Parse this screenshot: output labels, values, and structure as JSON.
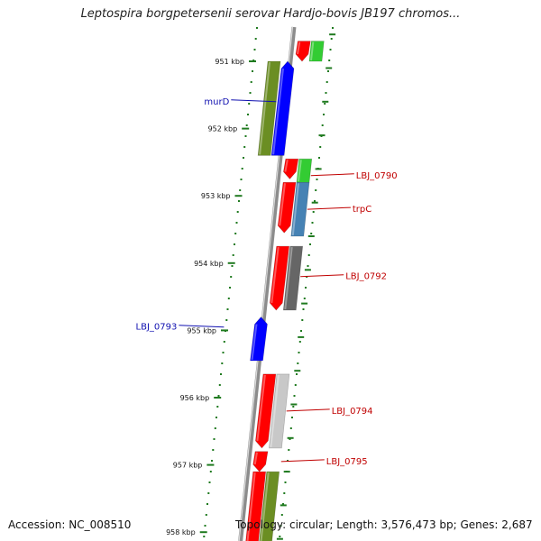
{
  "title": "Leptospira borgpetersenii serovar Hardjo-bovis JB197 chromos...",
  "accession": "Accession: NC_008510",
  "summary": "Topology: circular; Length: 3,576,473 bp; Genes: 2,687",
  "colors": {
    "backbone": "#8c8c8c",
    "tick": "#1f7a1f",
    "label_forward": "#1010b0",
    "label_reverse": "#c00000",
    "red": "#ff0000",
    "blue": "#0000ff",
    "olive": "#6b8e23",
    "green": "#33cc33",
    "steel": "#4682b4",
    "darkgray": "#666666",
    "lightgray": "#c8c8c8"
  },
  "ticks": [
    {
      "kbp": 951,
      "label": "951 kbp"
    },
    {
      "kbp": 952,
      "label": "952 kbp"
    },
    {
      "kbp": 953,
      "label": "953 kbp"
    },
    {
      "kbp": 954,
      "label": "954 kbp"
    },
    {
      "kbp": 955,
      "label": "955 kbp"
    },
    {
      "kbp": 956,
      "label": "956 kbp"
    },
    {
      "kbp": 957,
      "label": "957 kbp"
    },
    {
      "kbp": 958,
      "label": "958 kbp"
    }
  ],
  "features": [
    {
      "start": 950.7,
      "end": 951.0,
      "ring": 1,
      "color": "red",
      "dir": "down"
    },
    {
      "start": 950.7,
      "end": 951.0,
      "ring": 2,
      "color": "green",
      "dir": "none"
    },
    {
      "start": 951.0,
      "end": 952.4,
      "ring": -2,
      "color": "olive",
      "dir": "none"
    },
    {
      "start": 951.0,
      "end": 952.4,
      "ring": -1,
      "color": "blue",
      "dir": "up"
    },
    {
      "start": 952.45,
      "end": 952.75,
      "ring": 1,
      "color": "red",
      "dir": "down"
    },
    {
      "start": 952.45,
      "end": 952.8,
      "ring": 2,
      "color": "green",
      "dir": "none"
    },
    {
      "start": 952.8,
      "end": 953.55,
      "ring": 1,
      "color": "red",
      "dir": "down"
    },
    {
      "start": 952.8,
      "end": 953.6,
      "ring": 2,
      "color": "steel",
      "dir": "none"
    },
    {
      "start": 953.75,
      "end": 954.7,
      "ring": 1,
      "color": "red",
      "dir": "down"
    },
    {
      "start": 953.75,
      "end": 954.7,
      "ring": 2,
      "color": "darkgray",
      "dir": "none"
    },
    {
      "start": 954.8,
      "end": 955.45,
      "ring": -1,
      "color": "blue",
      "dir": "up"
    },
    {
      "start": 955.65,
      "end": 956.75,
      "ring": 1,
      "color": "red",
      "dir": "down"
    },
    {
      "start": 955.65,
      "end": 956.75,
      "ring": 2,
      "color": "lightgray",
      "dir": "none"
    },
    {
      "start": 956.8,
      "end": 957.1,
      "ring": 1,
      "color": "red",
      "dir": "down"
    },
    {
      "start": 957.1,
      "end": 958.2,
      "ring": 1,
      "color": "red",
      "dir": "none"
    },
    {
      "start": 957.1,
      "end": 958.2,
      "ring": 2,
      "color": "olive",
      "dir": "none"
    }
  ],
  "gene_labels": [
    {
      "text": "murD",
      "side": "left",
      "kbp": 951.6,
      "target_ring": -1,
      "color": "label_forward"
    },
    {
      "text": "LBJ_0790",
      "side": "right",
      "kbp": 952.7,
      "target_ring": 2,
      "color": "label_reverse"
    },
    {
      "text": "trpC",
      "side": "right",
      "kbp": 953.2,
      "target_ring": 2,
      "color": "label_reverse"
    },
    {
      "text": "LBJ_0792",
      "side": "right",
      "kbp": 954.2,
      "target_ring": 2,
      "color": "label_reverse"
    },
    {
      "text": "LBJ_0793",
      "side": "left",
      "kbp": 954.95,
      "target_ring": -3,
      "color": "label_forward"
    },
    {
      "text": "LBJ_0794",
      "side": "right",
      "kbp": 956.2,
      "target_ring": 2,
      "color": "label_reverse"
    },
    {
      "text": "LBJ_0795",
      "side": "right",
      "kbp": 956.95,
      "target_ring": 2,
      "color": "label_reverse"
    }
  ]
}
